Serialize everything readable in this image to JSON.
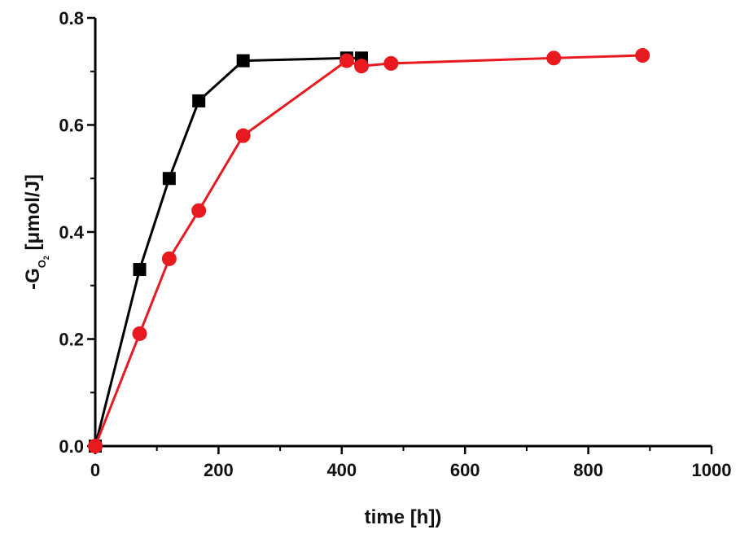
{
  "chart_data": {
    "type": "line",
    "title": "",
    "xlabel": "time [h])",
    "ylabel": {
      "prefix": "-G",
      "subscript_main": "O",
      "subscript_small": "2",
      "suffix": " [μmol/J]"
    },
    "xlim": [
      0,
      1000
    ],
    "ylim": [
      0.0,
      0.8
    ],
    "x_ticks": [
      0,
      200,
      400,
      600,
      800,
      1000
    ],
    "y_ticks": [
      "0.0",
      "0.2",
      "0.4",
      "0.6",
      "0.8"
    ],
    "grid": false,
    "legend": "none",
    "series": [
      {
        "color": "#000000",
        "marker": "square",
        "x": [
          0,
          72,
          120,
          168,
          240,
          408,
          432
        ],
        "y": [
          0.0,
          0.33,
          0.5,
          0.645,
          0.72,
          0.725,
          0.725
        ]
      },
      {
        "color": "#e8191f",
        "marker": "circle",
        "x": [
          0,
          72,
          120,
          168,
          240,
          408,
          432,
          480,
          744,
          888
        ],
        "y": [
          0.0,
          0.21,
          0.35,
          0.44,
          0.58,
          0.72,
          0.71,
          0.715,
          0.725,
          0.73
        ]
      }
    ]
  }
}
